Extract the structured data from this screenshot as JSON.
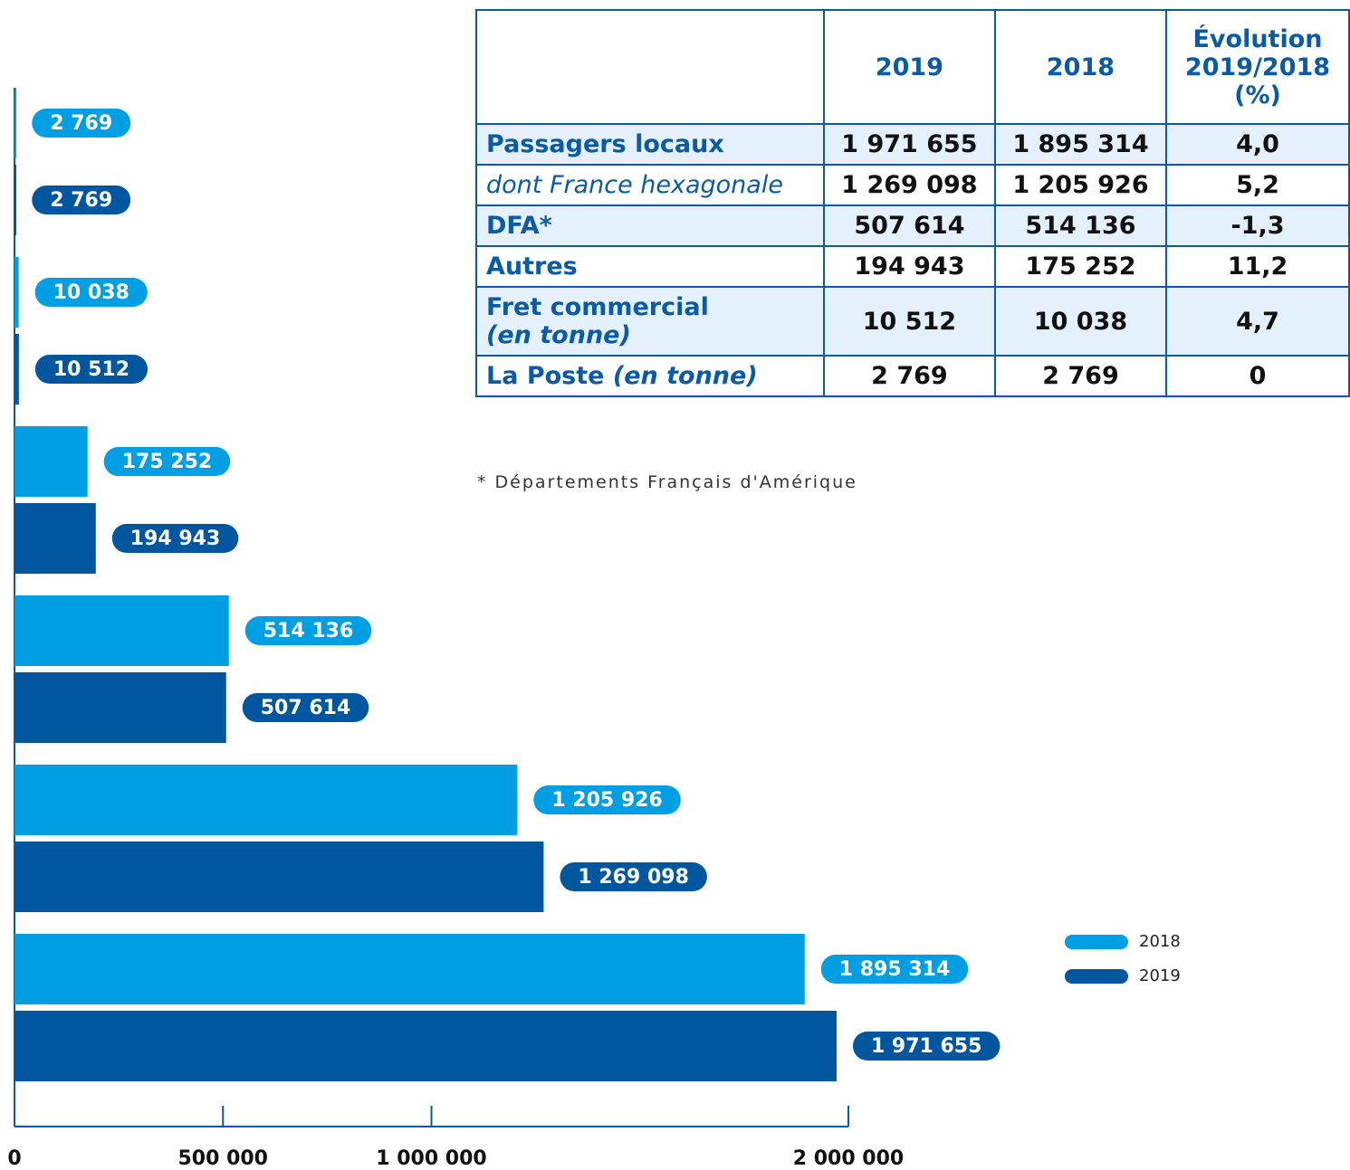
{
  "chart_data": {
    "type": "bar",
    "orientation": "horizontal",
    "categories": [
      null,
      null,
      null,
      null,
      null,
      null
    ],
    "series": [
      {
        "name": "2018",
        "color": "#009fe3",
        "values": [
          2769,
          10038,
          175252,
          514136,
          1205926,
          1895314
        ],
        "value_labels": [
          "2 769",
          "10 038",
          "175 252",
          "514 136",
          "1 205 926",
          "1 895 314"
        ]
      },
      {
        "name": "2019",
        "color": "#0057a0",
        "values": [
          2769,
          10512,
          194943,
          507614,
          1269098,
          1971655
        ],
        "value_labels": [
          "2 769",
          "10 512",
          "194 943",
          "507 614",
          "1 269 098",
          "1 971 655"
        ]
      }
    ],
    "xlim": [
      0,
      2000000
    ],
    "xticks": [
      0,
      {
        "value": 500000,
        "label": "500 000"
      },
      {
        "value": 1000000,
        "label": "1 000 000"
      },
      {
        "value": 2000000,
        "label": "2 000 000"
      }
    ],
    "legend": "bottom-right"
  },
  "table": {
    "header": [
      "2019",
      "2018",
      "Évolution 2019/2018 (%)"
    ],
    "rows": [
      {
        "label": "Passagers locaux",
        "values": [
          "1 971 655",
          "1 895 314",
          "4,0"
        ]
      },
      {
        "label": "dont France hexagonale",
        "style": "italic",
        "values": [
          "1 269 098",
          "1 205 926",
          "5,2"
        ]
      },
      {
        "label": "DFA*",
        "values": [
          "507 614",
          "514 136",
          "-1,3"
        ]
      },
      {
        "label": "Autres",
        "values": [
          "194 943",
          "175 252",
          "11,2"
        ]
      },
      {
        "label": "Fret commercial",
        "note": "(en tonne)",
        "values": [
          "10 512",
          "10 038",
          "4,7"
        ]
      },
      {
        "label": "La Poste",
        "note": "(en tonne)",
        "values": [
          "2 769",
          "2 769",
          "0"
        ]
      }
    ]
  },
  "footnote": "* Départements Français d'Amérique"
}
